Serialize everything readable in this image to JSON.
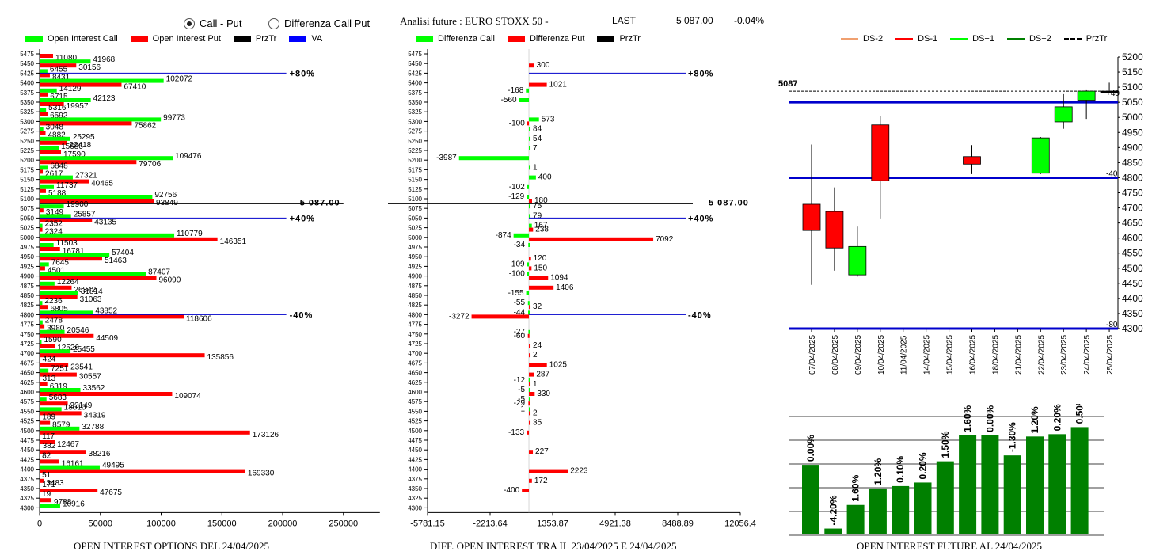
{
  "header": {
    "radio_call_put": "Call - Put",
    "radio_diff": "Differenza Call Put",
    "analysis_title": "Analisi future : EURO STOXX 50 -",
    "last_label": "LAST",
    "last_value": "5 087.00",
    "last_change": "-0.04%"
  },
  "colors": {
    "green": "#00ff00",
    "red": "#ff0000",
    "black": "#000000",
    "blue": "#0000ff",
    "dark_green": "#008000",
    "blue_line": "#0000cc"
  },
  "strikes": [
    5475,
    5450,
    5425,
    5400,
    5375,
    5350,
    5325,
    5300,
    5275,
    5250,
    5225,
    5200,
    5175,
    5150,
    5125,
    5100,
    5075,
    5050,
    5025,
    5000,
    4975,
    4950,
    4925,
    4900,
    4875,
    4850,
    4825,
    4800,
    4775,
    4750,
    4725,
    4700,
    4675,
    4650,
    4625,
    4600,
    4575,
    4550,
    4525,
    4500,
    4475,
    4450,
    4425,
    4400,
    4375,
    4350,
    4325,
    4300
  ],
  "chart_data": [
    {
      "type": "bar",
      "orientation": "horizontal",
      "title": "OPEN INTEREST OPTIONS DEL 24/04/2025",
      "legend": [
        "Open Interest Call",
        "Open Interest Put",
        "PrzTr",
        "VA"
      ],
      "series": [
        {
          "name": "Open Interest Call",
          "values": [
            null,
            41968,
            6455,
            102072,
            14129,
            42123,
            5316,
            99773,
            3048,
            25295,
            15686,
            109476,
            6848,
            27321,
            11737,
            92756,
            19900,
            25857,
            2352,
            110779,
            11503,
            57404,
            7645,
            87407,
            12264,
            31814,
            2236,
            43852,
            2478,
            20546,
            1590,
            25455,
            424,
            7251,
            313,
            33562,
            5683,
            18010,
            189,
            32788,
            117,
            382,
            82,
            49495,
            51,
            171,
            19,
            16916
          ]
        },
        {
          "name": "Open Interest Put",
          "values": [
            11080,
            30156,
            8431,
            67410,
            6715,
            19957,
            6592,
            75862,
            4882,
            22418,
            17590,
            79706,
            2617,
            40465,
            5188,
            93849,
            3149,
            43135,
            2324,
            146351,
            16781,
            51463,
            4501,
            96090,
            26342,
            31063,
            6805,
            118606,
            3980,
            44509,
            12526,
            135856,
            23541,
            30557,
            6319,
            109074,
            23149,
            34319,
            8579,
            173126,
            12467,
            38216,
            16161,
            169330,
            3483,
            47675,
            9788,
            null
          ]
        }
      ],
      "x_ticks": [
        "0",
        "50000",
        "100000",
        "150000",
        "200000",
        "250000"
      ],
      "xlim": [
        0,
        280000
      ],
      "price_line": {
        "strike": 5087,
        "label": "5 087.00"
      },
      "va_lines": [
        {
          "strike": 5425,
          "label": "+80%"
        },
        {
          "strike": 5050,
          "label": "+40%"
        },
        {
          "strike": 4800,
          "label": "-40%"
        }
      ]
    },
    {
      "type": "bar",
      "orientation": "horizontal",
      "title": "DIFF. OPEN INTEREST TRA IL 23/04/2025 E 24/04/2025",
      "legend": [
        "Differenza Call",
        "Differenza Put",
        "PrzTr"
      ],
      "series": [
        {
          "name": "Differenza Call",
          "values": [
            null,
            null,
            null,
            null,
            -168,
            -560,
            null,
            573,
            84,
            54,
            7,
            -3987,
            1,
            400,
            -102,
            -129,
            75,
            79,
            167,
            -874,
            -34,
            null,
            -109,
            -100,
            null,
            -155,
            -55,
            -44,
            null,
            -27,
            null,
            null,
            null,
            null,
            -12,
            -5,
            -5,
            -1,
            null,
            null,
            null,
            null,
            null,
            null,
            null,
            null,
            null,
            null
          ]
        },
        {
          "name": "Differenza Put",
          "values": [
            null,
            300,
            null,
            1021,
            null,
            null,
            null,
            -100,
            null,
            null,
            null,
            null,
            null,
            null,
            null,
            180,
            null,
            null,
            238,
            7092,
            null,
            120,
            150,
            1094,
            1406,
            null,
            32,
            -3272,
            null,
            -60,
            24,
            2,
            1025,
            287,
            1,
            330,
            -29,
            2,
            35,
            -133,
            null,
            227,
            null,
            2223,
            172,
            -400,
            null,
            null
          ]
        }
      ],
      "x_ticks": [
        "-5781.15",
        "-2213.64",
        "1353.87",
        "4921.38",
        "8488.89",
        "12056.4"
      ],
      "xlim": [
        -5781.15,
        12056.4
      ],
      "price_line": {
        "strike": 5087,
        "label": "5 087.00"
      },
      "va_lines": [
        {
          "strike": 5425,
          "label": "+80%"
        },
        {
          "strike": 5050,
          "label": "+40%"
        },
        {
          "strike": 4800,
          "label": "-40%"
        }
      ]
    },
    {
      "type": "candlestick",
      "legend": [
        "DS-2",
        "DS-1",
        "DS+1",
        "DS+2",
        "PrzTr"
      ],
      "y_ticks": [
        "5200",
        "5150",
        "5100",
        "5050",
        "5000",
        "4950",
        "4900",
        "4850",
        "4800",
        "4750",
        "4700",
        "4650",
        "4600",
        "4550",
        "4500",
        "4450",
        "4400",
        "4350",
        "4300"
      ],
      "ylim": [
        4300,
        5200
      ],
      "current_price": "5087",
      "band_labels": [
        "+40",
        "-40",
        "-80"
      ],
      "bands": [
        5050,
        4800,
        4300
      ],
      "dates": [
        "07/04/2025",
        "08/04/2025",
        "09/04/2025",
        "10/04/2025",
        "11/04/2025",
        "14/04/2025",
        "15/04/2025",
        "16/04/2025",
        "18/04/2025",
        "21/04/2025",
        "22/04/2025",
        "23/04/2025",
        "24/04/2025",
        "25/04/2025"
      ],
      "candles": [
        {
          "open": 4712,
          "high": 4910,
          "low": 4445,
          "close": 4625,
          "color": "red"
        },
        {
          "open": 4688,
          "high": 4768,
          "low": 4492,
          "close": 4567,
          "color": "red"
        },
        {
          "open": 4478,
          "high": 4638,
          "low": 4472,
          "close": 4572,
          "color": "green"
        },
        {
          "open": 4975,
          "high": 5005,
          "low": 4665,
          "close": 4790,
          "color": "red"
        },
        null,
        null,
        null,
        {
          "open": 4870,
          "high": 4908,
          "low": 4812,
          "close": 4845,
          "color": "red"
        },
        null,
        null,
        {
          "open": 4815,
          "high": 4935,
          "low": 4812,
          "close": 4932,
          "color": "green"
        },
        {
          "open": 4985,
          "high": 5077,
          "low": 4962,
          "close": 5035,
          "color": "green"
        },
        {
          "open": 5057,
          "high": 5090,
          "low": 4995,
          "close": 5087,
          "color": "green"
        },
        {
          "open": 5087,
          "high": 5115,
          "low": 5080,
          "close": 5087,
          "color": "black"
        }
      ]
    },
    {
      "type": "bar",
      "title": "OPEN INTEREST FUTURE AL 24/04/2025",
      "bar_labels": [
        "0.00%",
        "-4.20%",
        "1.60%",
        "1.20%",
        "0.10%",
        "0.20%",
        "1.50%",
        "1.60%",
        "0.00%",
        "-1.30%",
        "1.20%",
        "0.20%",
        "0.50%"
      ],
      "values": [
        0.59,
        0.05,
        0.25,
        0.39,
        0.41,
        0.44,
        0.62,
        0.84,
        0.84,
        0.67,
        0.83,
        0.85,
        0.91
      ]
    }
  ]
}
